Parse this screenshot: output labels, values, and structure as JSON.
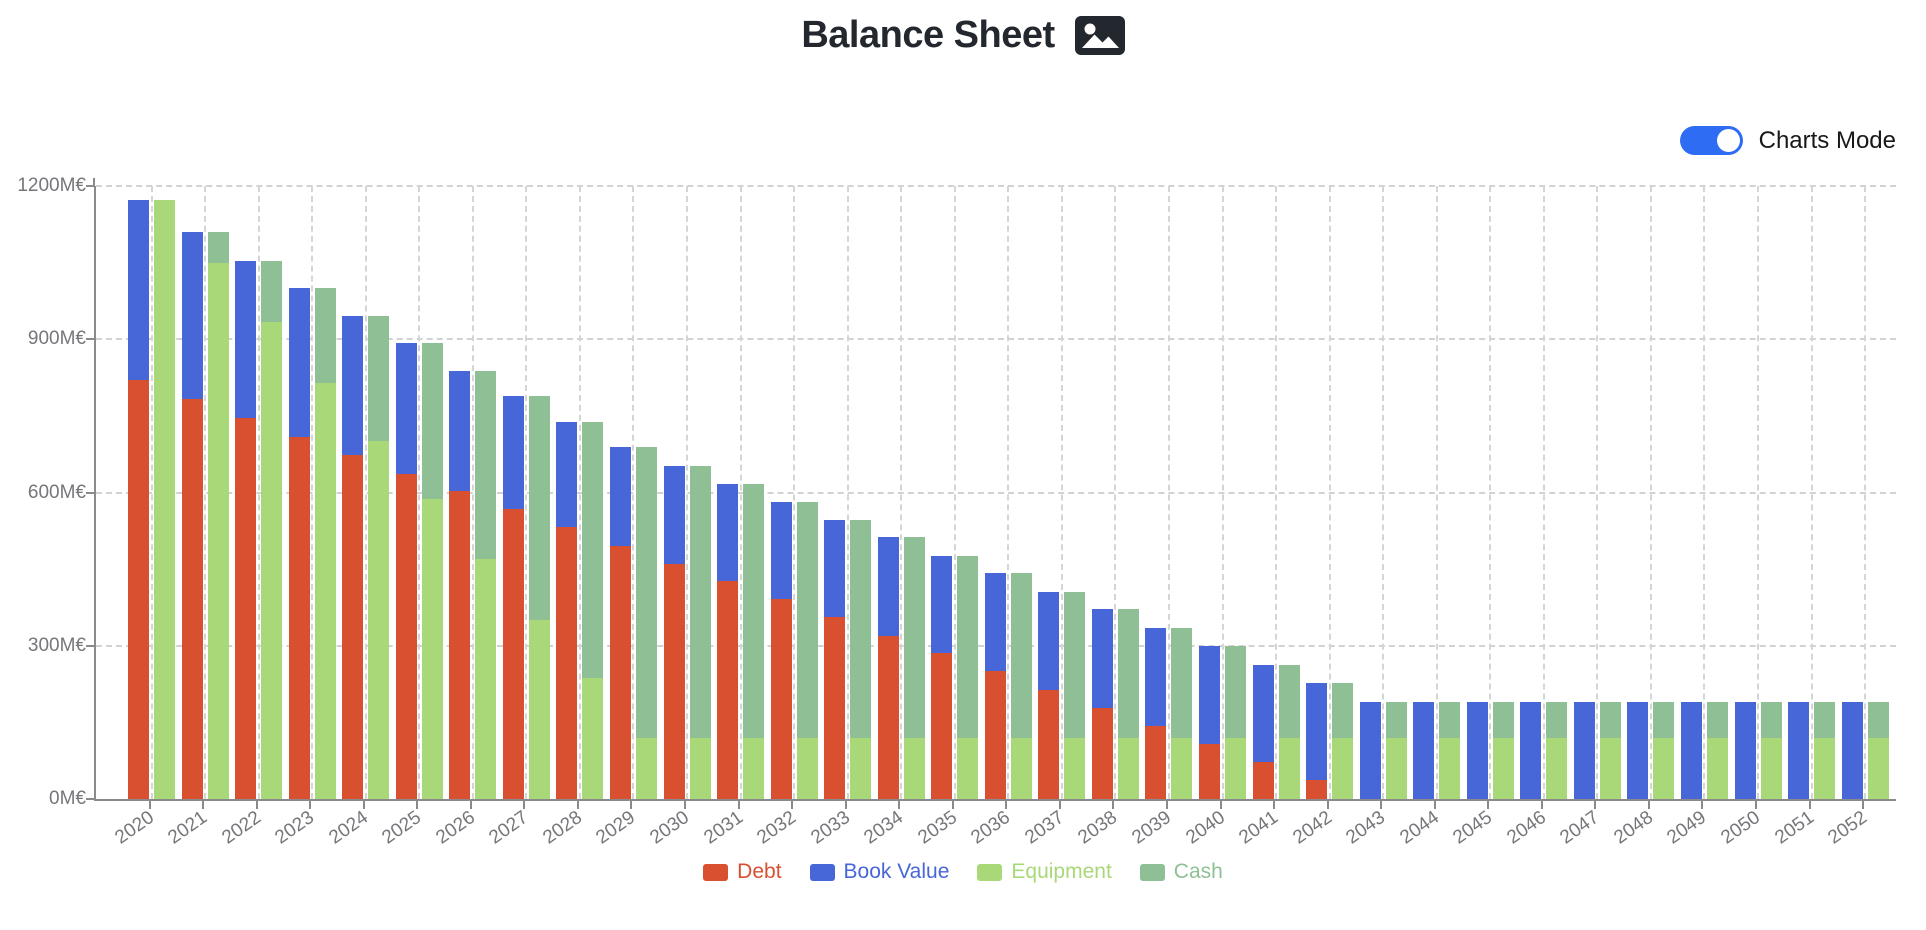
{
  "title": "Balance Sheet",
  "title_icon": "image-icon",
  "toggle": {
    "label": "Charts Mode",
    "state": "on",
    "color": "#2e6cf4"
  },
  "axis": {
    "y_unit_suffix": "M€"
  },
  "chart_data": {
    "type": "bar",
    "stacked": true,
    "title": "Balance Sheet",
    "x": [
      2020,
      2021,
      2022,
      2023,
      2024,
      2025,
      2026,
      2027,
      2028,
      2029,
      2030,
      2031,
      2032,
      2033,
      2034,
      2035,
      2036,
      2037,
      2038,
      2039,
      2040,
      2041,
      2042,
      2043,
      2044,
      2045,
      2046,
      2047,
      2048,
      2049,
      2050,
      2051,
      2052
    ],
    "series": [
      {
        "name": "Debt",
        "color": "#d8502f",
        "stack": 0,
        "values": [
          820,
          783,
          746,
          709,
          673,
          637,
          602,
          568,
          532,
          496,
          461,
          426,
          391,
          356,
          320,
          285,
          250,
          214,
          178,
          142,
          107,
          72,
          37,
          0,
          0,
          0,
          0,
          0,
          0,
          0,
          0,
          0,
          0
        ]
      },
      {
        "name": "Book Value",
        "color": "#4766d8",
        "stack": 0,
        "values": [
          352,
          327,
          307,
          291,
          272,
          256,
          236,
          221,
          206,
          193,
          191,
          191,
          190,
          190,
          193,
          191,
          192,
          191,
          194,
          193,
          193,
          190,
          190,
          190,
          190,
          190,
          190,
          190,
          190,
          190,
          190,
          190,
          190
        ]
      },
      {
        "name": "Equipment",
        "color": "#a9d878",
        "stack": 1,
        "values": [
          1172,
          1050,
          934,
          814,
          700,
          588,
          470,
          350,
          237,
          120,
          120,
          120,
          120,
          120,
          120,
          120,
          120,
          120,
          120,
          120,
          120,
          120,
          120,
          120,
          120,
          120,
          120,
          120,
          120,
          120,
          120,
          120,
          120
        ]
      },
      {
        "name": "Cash",
        "color": "#8fc095",
        "stack": 1,
        "values": [
          0,
          60,
          119,
          186,
          245,
          305,
          368,
          439,
          501,
          569,
          532,
          497,
          461,
          426,
          393,
          356,
          322,
          285,
          252,
          215,
          180,
          142,
          107,
          70,
          70,
          70,
          70,
          70,
          70,
          70,
          70,
          70,
          70
        ]
      }
    ],
    "ylim": [
      0,
      1200
    ],
    "yticks": [
      0,
      300,
      600,
      900,
      1200
    ],
    "y_tick_suffix": "M€",
    "grid": "dashed",
    "legend_position": "bottom"
  }
}
